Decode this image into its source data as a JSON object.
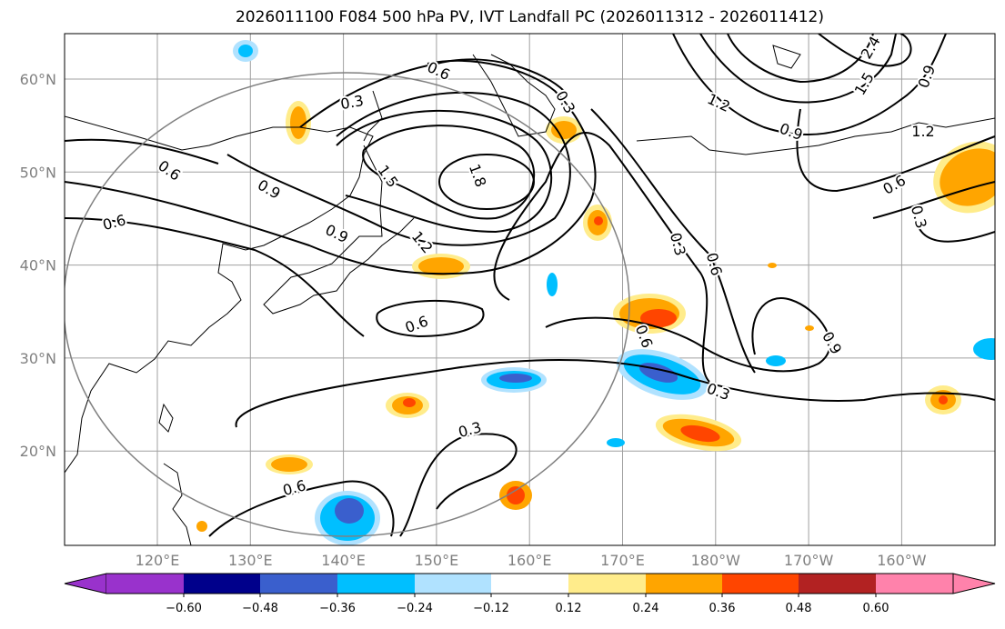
{
  "title": "2026011100 F084 500 hPa PV, IVT Landfall PC (2026011312 - 2026011412)",
  "lat_labels": [
    "60°N",
    "50°N",
    "40°N",
    "30°N",
    "20°N"
  ],
  "lon_labels": [
    "120°E",
    "130°E",
    "140°E",
    "150°E",
    "160°E",
    "170°E",
    "180°W",
    "170°W",
    "160°W"
  ],
  "colorbar": {
    "ticks": [
      "−0.60",
      "−0.48",
      "−0.36",
      "−0.24",
      "−0.12",
      "0.12",
      "0.24",
      "0.36",
      "0.48",
      "0.60"
    ],
    "colors": [
      "#9932cc",
      "#00008b",
      "#3a5fcd",
      "#00bfff",
      "#b0e2ff",
      "#ffffff",
      "#ffec8b",
      "#ffa500",
      "#ff4500",
      "#b22222",
      "#ff82ab"
    ]
  },
  "contour_labels": [
    "0.6",
    "0.3",
    "0.9",
    "0.6",
    "0.6",
    "0.9",
    "1.5",
    "1.8",
    "1.2",
    "0.3",
    "0.6",
    "0.3",
    "0.6",
    "0.6",
    "0.3",
    "0.3",
    "1.2",
    "0.9",
    "1.5",
    "2.4",
    "0.9",
    "1.2",
    "0.6",
    "0.3",
    "0.9",
    "0.6"
  ],
  "colors": {
    "contour": "#000000",
    "grid": "#a0a0a0",
    "circle": "#808080"
  }
}
